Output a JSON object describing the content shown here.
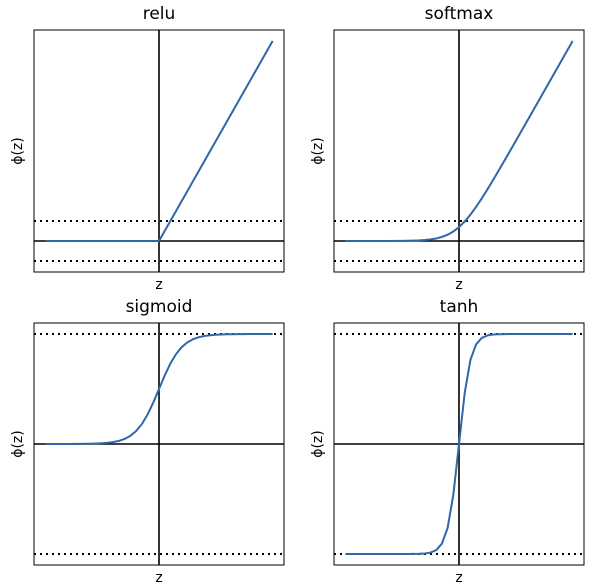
{
  "chart_data": [
    {
      "type": "line",
      "title": "relu",
      "xlabel": "z",
      "ylabel": "ϕ(z)",
      "x": [
        -10,
        -9.5,
        -9,
        -8.5,
        -8,
        -7.5,
        -7,
        -6.5,
        -6,
        -5.5,
        -5,
        -4.5,
        -4,
        -3.5,
        -3,
        -2.5,
        -2,
        -1.5,
        -1,
        -0.5,
        0,
        0.5,
        1,
        1.5,
        2,
        2.5,
        3,
        3.5,
        4,
        4.5,
        5,
        5.5,
        6,
        6.5,
        7,
        7.5,
        8,
        8.5,
        9,
        9.5,
        10
      ],
      "series": [
        {
          "color": "#2f67a8",
          "values": [
            0,
            0,
            0,
            0,
            0,
            0,
            0,
            0,
            0,
            0,
            0,
            0,
            0,
            0,
            0,
            0,
            0,
            0,
            0,
            0,
            0,
            0.5,
            1,
            1.5,
            2,
            2.5,
            3,
            3.5,
            4,
            4.5,
            5,
            5.5,
            6,
            6.5,
            7,
            7.5,
            8,
            8.5,
            9,
            9.5,
            10
          ]
        }
      ],
      "xlim": [
        -11,
        11
      ],
      "ylim": [
        -1.55,
        10.55
      ],
      "hlines_dotted": [
        -1,
        1
      ],
      "hlines_solid": [
        0
      ],
      "vlines_solid": [
        0
      ]
    },
    {
      "type": "line",
      "title": "softmax",
      "xlabel": "z",
      "ylabel": "ϕ(z)",
      "x": [
        -10,
        -9.5,
        -9,
        -8.5,
        -8,
        -7.5,
        -7,
        -6.5,
        -6,
        -5.5,
        -5,
        -4.5,
        -4,
        -3.5,
        -3,
        -2.5,
        -2,
        -1.5,
        -1,
        -0.5,
        0,
        0.5,
        1,
        1.5,
        2,
        2.5,
        3,
        3.5,
        4,
        4.5,
        5,
        5.5,
        6,
        6.5,
        7,
        7.5,
        8,
        8.5,
        9,
        9.5,
        10
      ],
      "series": [
        {
          "color": "#2f67a8",
          "values": [
            0,
            0,
            0,
            0,
            0,
            0.001,
            0.001,
            0.002,
            0.002,
            0.004,
            0.007,
            0.011,
            0.018,
            0.03,
            0.049,
            0.079,
            0.127,
            0.201,
            0.313,
            0.474,
            0.693,
            0.974,
            1.313,
            1.701,
            2.127,
            2.579,
            3.049,
            3.53,
            4.018,
            4.511,
            5.007,
            5.504,
            6.002,
            6.502,
            7.001,
            7.501,
            8,
            8.5,
            9,
            9.5,
            10
          ]
        }
      ],
      "xlim": [
        -11,
        11
      ],
      "ylim": [
        -1.55,
        10.55
      ],
      "hlines_dotted": [
        -1,
        1
      ],
      "hlines_solid": [
        0
      ],
      "vlines_solid": [
        0
      ]
    },
    {
      "type": "line",
      "title": "sigmoid",
      "xlabel": "z",
      "ylabel": "ϕ(z)",
      "x": [
        -10,
        -9.5,
        -9,
        -8.5,
        -8,
        -7.5,
        -7,
        -6.5,
        -6,
        -5.5,
        -5,
        -4.5,
        -4,
        -3.5,
        -3,
        -2.5,
        -2,
        -1.5,
        -1,
        -0.5,
        0,
        0.5,
        1,
        1.5,
        2,
        2.5,
        3,
        3.5,
        4,
        4.5,
        5,
        5.5,
        6,
        6.5,
        7,
        7.5,
        8,
        8.5,
        9,
        9.5,
        10
      ],
      "series": [
        {
          "color": "#2f67a8",
          "values": [
            0,
            0,
            0,
            0,
            0,
            0.001,
            0.001,
            0.002,
            0.002,
            0.004,
            0.007,
            0.011,
            0.018,
            0.029,
            0.047,
            0.076,
            0.119,
            0.182,
            0.269,
            0.378,
            0.5,
            0.622,
            0.731,
            0.818,
            0.881,
            0.924,
            0.953,
            0.971,
            0.982,
            0.989,
            0.993,
            0.996,
            0.998,
            0.998,
            0.999,
            0.999,
            1,
            1,
            1,
            1,
            1
          ]
        }
      ],
      "xlim": [
        -11,
        11
      ],
      "ylim": [
        -1.1,
        1.1
      ],
      "hlines_dotted": [
        -1,
        1
      ],
      "hlines_solid": [
        0
      ],
      "vlines_solid": [
        0
      ]
    },
    {
      "type": "line",
      "title": "tanh",
      "xlabel": "z",
      "ylabel": "ϕ(z)",
      "x": [
        -10,
        -9.5,
        -9,
        -8.5,
        -8,
        -7.5,
        -7,
        -6.5,
        -6,
        -5.5,
        -5,
        -4.5,
        -4,
        -3.5,
        -3,
        -2.5,
        -2,
        -1.5,
        -1,
        -0.5,
        0,
        0.5,
        1,
        1.5,
        2,
        2.5,
        3,
        3.5,
        4,
        4.5,
        5,
        5.5,
        6,
        6.5,
        7,
        7.5,
        8,
        8.5,
        9,
        9.5,
        10
      ],
      "series": [
        {
          "color": "#2f67a8",
          "values": [
            -1,
            -1,
            -1,
            -1,
            -1,
            -1,
            -1,
            -1,
            -1,
            -1,
            -1,
            -1,
            -0.999,
            -0.998,
            -0.995,
            -0.987,
            -0.964,
            -0.905,
            -0.762,
            -0.462,
            0,
            0.462,
            0.762,
            0.905,
            0.964,
            0.987,
            0.995,
            0.998,
            0.999,
            1,
            1,
            1,
            1,
            1,
            1,
            1,
            1,
            1,
            1,
            1,
            1
          ]
        }
      ],
      "xlim": [
        -11,
        11
      ],
      "ylim": [
        -1.1,
        1.1
      ],
      "hlines_dotted": [
        -1,
        1
      ],
      "hlines_solid": [
        0
      ],
      "vlines_solid": [
        0
      ]
    }
  ]
}
